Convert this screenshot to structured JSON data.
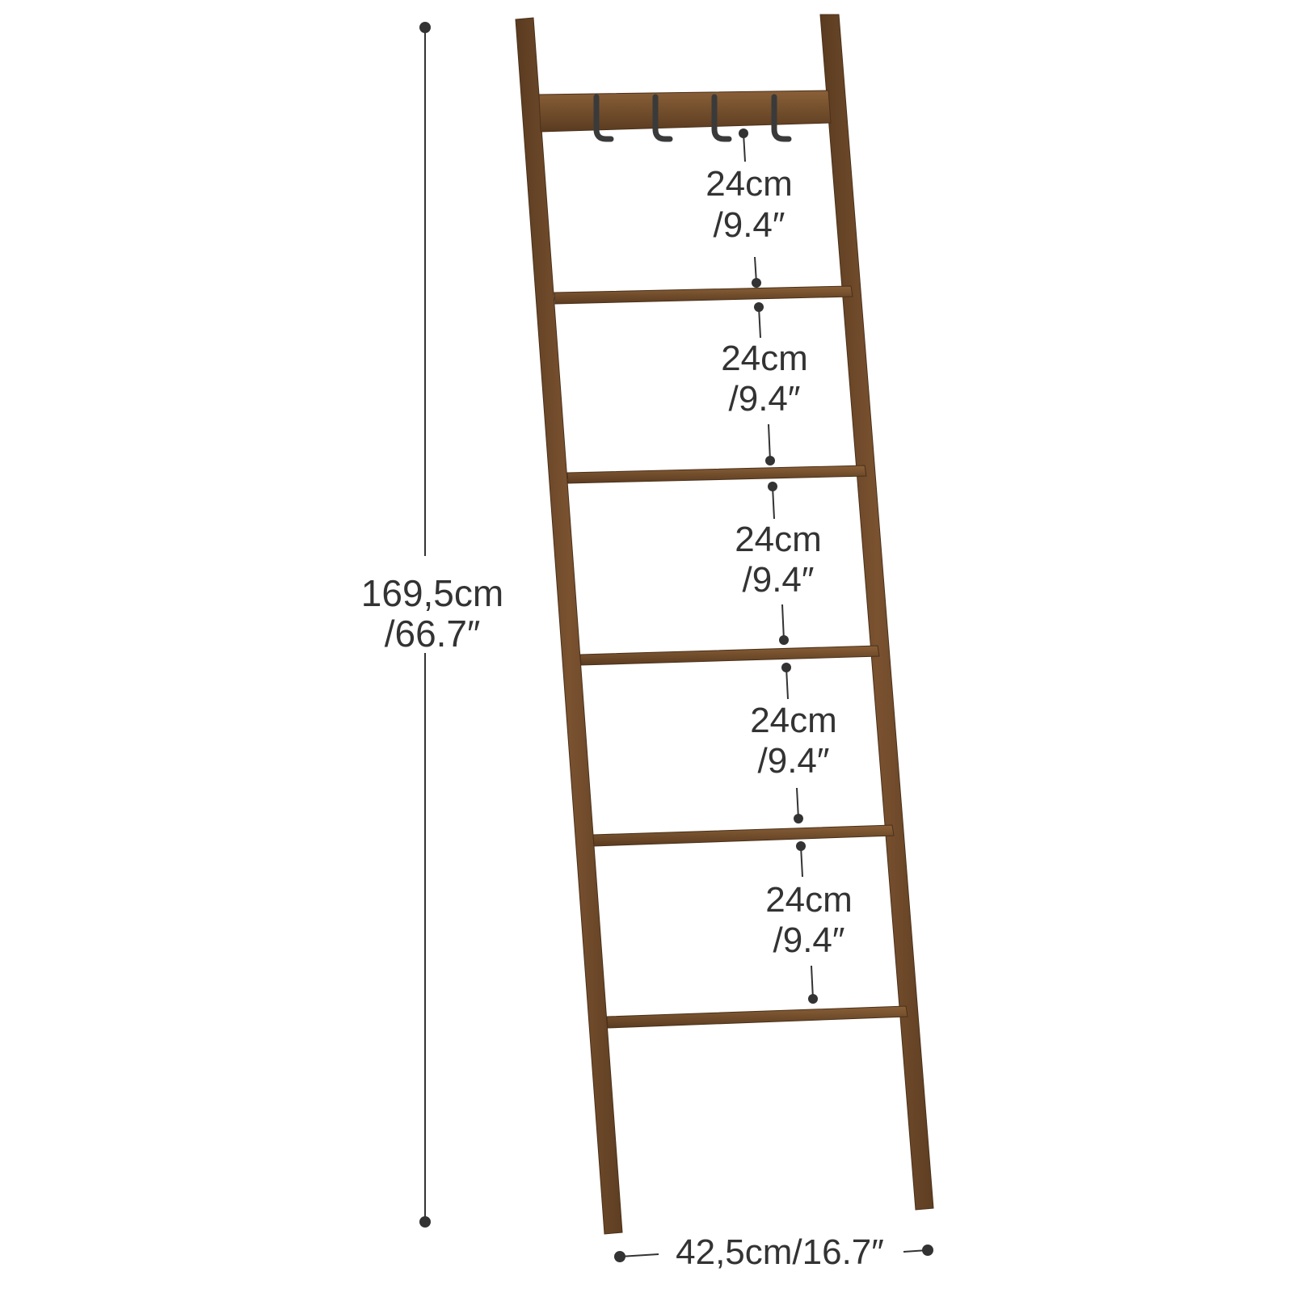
{
  "colors": {
    "wood": "#6e4a2a",
    "wood_light": "#8a6038",
    "wood_dark": "#4a3019",
    "hook": "#3a3a3a",
    "dimension": "#333333",
    "background": "#ffffff"
  },
  "dimensions": {
    "height": {
      "metric": "169,5cm",
      "imperial": "/66.7″"
    },
    "width": {
      "text": "42,5cm/16.7″"
    },
    "rung_spacings": [
      {
        "metric": "24cm",
        "imperial": "/9.4″"
      },
      {
        "metric": "24cm",
        "imperial": "/9.4″"
      },
      {
        "metric": "24cm",
        "imperial": "/9.4″"
      },
      {
        "metric": "24cm",
        "imperial": "/9.4″"
      },
      {
        "metric": "24cm",
        "imperial": "/9.4″"
      }
    ]
  },
  "ladder": {
    "rungs": 5,
    "hooks": 4
  }
}
